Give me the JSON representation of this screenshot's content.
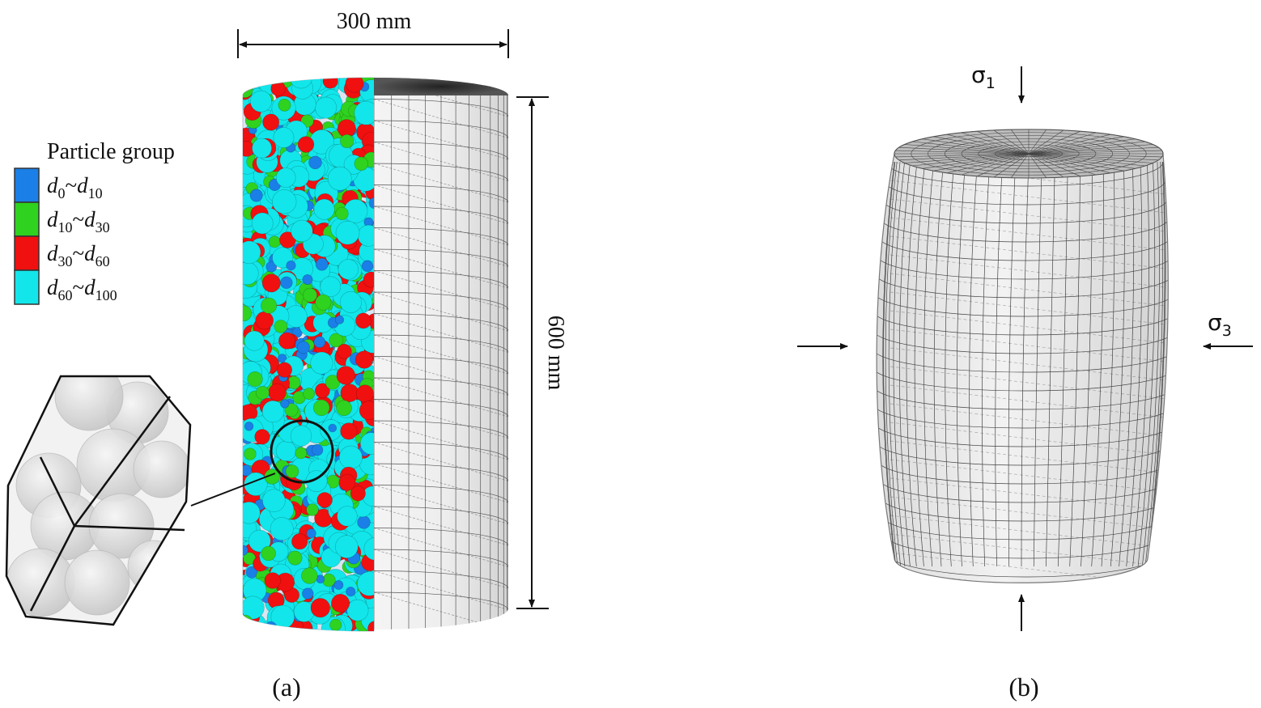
{
  "dimensions": {
    "width": "300 mm",
    "height": "600 mm"
  },
  "legend": {
    "title": "Particle group",
    "separator": "~",
    "items": [
      {
        "color": "#1a7fe6",
        "base": "d",
        "low": "0",
        "high": "10"
      },
      {
        "color": "#2fd21f",
        "base": "d",
        "low": "10",
        "high": "30"
      },
      {
        "color": "#f01010",
        "base": "d",
        "low": "30",
        "high": "60"
      },
      {
        "color": "#12e6ea",
        "base": "d",
        "low": "60",
        "high": "100"
      }
    ]
  },
  "stresses": {
    "axial": {
      "symbol": "σ",
      "sub": "1"
    },
    "lateral": {
      "symbol": "σ",
      "sub": "3"
    }
  },
  "panels": {
    "a": "(a)",
    "b": "(b)"
  }
}
